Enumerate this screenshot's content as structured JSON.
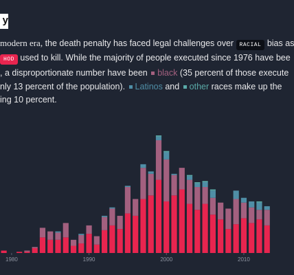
{
  "header": {
    "title": "y"
  },
  "text": {
    "parts": [
      "modern era,",
      " the death penalty has faced legal challenges over ",
      "RACIAL",
      " bias as",
      "HOD",
      " used to kill. While the majority of people executed since 1976 have bee",
      ", a disproportionate number have been ",
      " (35 percent of those execute",
      "nly 13 percent of the population). ",
      " and ",
      " races make up the",
      "ing 10 percent."
    ]
  },
  "chart_data": {
    "type": "stacked-bar",
    "x": [
      1979,
      1980,
      1981,
      1982,
      1983,
      1984,
      1985,
      1986,
      1987,
      1988,
      1989,
      1990,
      1991,
      1992,
      1993,
      1994,
      1995,
      1996,
      1997,
      1998,
      1999,
      2000,
      2001,
      2002,
      2003,
      2004,
      2005,
      2006,
      2007,
      2008,
      2009,
      2010,
      2011,
      2012,
      2013
    ],
    "xlim": [
      1978.5,
      2014
    ],
    "xticks": [
      1980,
      1990,
      2000,
      2010
    ],
    "series": [
      {
        "color": "#e8254f",
        "values": [
          2,
          0,
          1,
          1,
          4,
          13,
          11,
          11,
          13,
          6,
          8,
          16,
          7,
          19,
          23,
          20,
          33,
          31,
          45,
          48,
          61,
          43,
          48,
          53,
          41,
          36,
          41,
          32,
          28,
          20,
          24,
          29,
          25,
          28,
          23
        ]
      },
      {
        "name": "black",
        "color": "#a3607f",
        "values": [
          0,
          0,
          0,
          1,
          1,
          8,
          7,
          6,
          12,
          5,
          7,
          7,
          7,
          11,
          14,
          11,
          22,
          14,
          26,
          18,
          33,
          35,
          17,
          18,
          20,
          19,
          14,
          14,
          14,
          17,
          21,
          13,
          13,
          8,
          13
        ]
      },
      {
        "name": "Latinos",
        "color": "#4f8ea6",
        "values": [
          0,
          0,
          0,
          0,
          0,
          0,
          0,
          1,
          0,
          0,
          1,
          0,
          0,
          1,
          1,
          0,
          1,
          0,
          3,
          2,
          3,
          6,
          1,
          0,
          3,
          3,
          4,
          6,
          0,
          0,
          7,
          4,
          5,
          6,
          3
        ]
      },
      {
        "name": "other",
        "color": "#5aaaa8",
        "values": [
          0,
          0,
          0,
          0,
          0,
          0,
          0,
          0,
          0,
          0,
          0,
          0,
          0,
          0,
          0,
          0,
          0,
          0,
          0,
          0,
          1,
          1,
          0,
          0,
          1,
          1,
          1,
          1,
          0,
          0,
          0,
          0,
          0,
          1,
          0
        ]
      }
    ]
  }
}
